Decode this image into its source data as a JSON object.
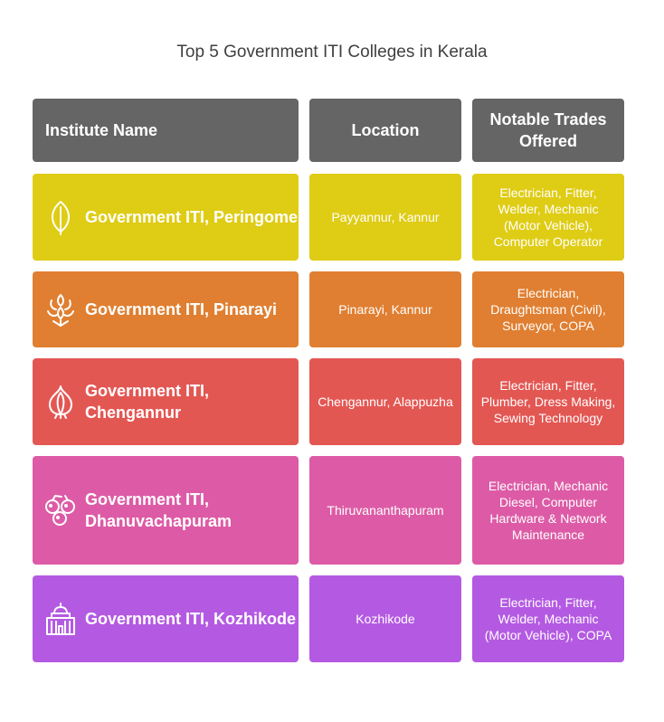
{
  "title": "Top 5 Government ITI Colleges in Kerala",
  "headers": {
    "name": "Institute Name",
    "location": "Location",
    "trades": "Notable Trades Offered"
  },
  "rows": [
    {
      "name": "Government ITI, Peringome",
      "location": "Payyannur, Kannur",
      "trades": "Electrician, Fitter, Welder, Mechanic (Motor Vehicle), Computer Operator",
      "icon": "leaf-icon",
      "color": "#dfcc15"
    },
    {
      "name": "Government ITI, Pinarayi",
      "location": "Pinarayi, Kannur",
      "trades": "Electrician, Draughtsman (Civil), Surveyor, COPA",
      "icon": "plant-sprout-icon",
      "color": "#e07f31"
    },
    {
      "name": "Government ITI, Chengannur",
      "location": "Chengannur, Alappuzha",
      "trades": "Electrician, Fitter, Plumber, Dress Making, Sewing Technology",
      "icon": "onion-icon",
      "color": "#e35753"
    },
    {
      "name": "Government ITI, Dhanuvachapuram",
      "location": "Thiruvananthapuram",
      "trades": "Electrician, Mechanic Diesel, Computer Hardware & Network Maintenance",
      "icon": "berries-icon",
      "color": "#dd5ba6"
    },
    {
      "name": "Government ITI, Kozhikode",
      "location": "Kozhikode",
      "trades": "Electrician, Fitter, Welder, Mechanic (Motor Vehicle), COPA",
      "icon": "temple-building-icon",
      "color": "#b45ae2"
    }
  ]
}
